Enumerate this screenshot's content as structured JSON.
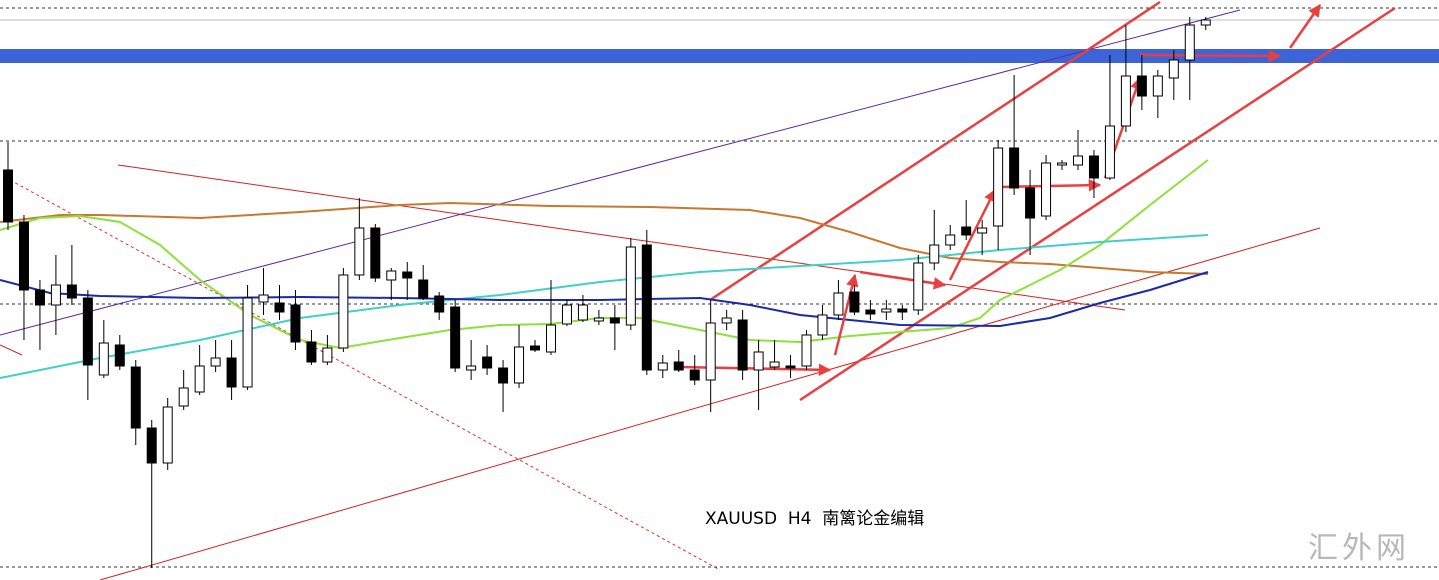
{
  "chart_data": {
    "type": "candlestick",
    "title": "XAUUSD  H4  南篱论金编辑",
    "watermark": "汇外网",
    "ylim": [
      0,
      580
    ],
    "up_color": "#ffffff",
    "down_color": "#000000",
    "edge_color": "#000000",
    "open": [
      410,
      358,
      290,
      275,
      295,
      282,
      205,
      235,
      213,
      152,
      117,
      174,
      188,
      214,
      222,
      193,
      278,
      277,
      275,
      238,
      218,
      232,
      305,
      352,
      300,
      308,
      300,
      284,
      273,
      210,
      223,
      212,
      197,
      234,
      228,
      256,
      260,
      259,
      262,
      255,
      335,
      210,
      218,
      210,
      200,
      257,
      260,
      210,
      213,
      214,
      214,
      245,
      265,
      288,
      270,
      268,
      271,
      270,
      317,
      335,
      353,
      347,
      354,
      432,
      392,
      364,
      415,
      415,
      424,
      402,
      454,
      504,
      484,
      502,
      520,
      555
    ],
    "high": [
      438,
      365,
      300,
      325,
      335,
      290,
      260,
      245,
      220,
      160,
      182,
      210,
      235,
      240,
      240,
      295,
      312,
      295,
      290,
      250,
      245,
      312,
      382,
      356,
      312,
      318,
      315,
      288,
      280,
      240,
      235,
      220,
      255,
      240,
      300,
      280,
      285,
      270,
      275,
      342,
      350,
      225,
      230,
      225,
      280,
      270,
      270,
      240,
      240,
      225,
      250,
      275,
      300,
      295,
      280,
      280,
      275,
      325,
      370,
      355,
      380,
      360,
      440,
      505,
      410,
      425,
      420,
      450,
      430,
      525,
      555,
      525,
      510,
      530,
      563,
      563
    ],
    "low": [
      350,
      240,
      230,
      245,
      275,
      180,
      202,
      210,
      135,
      12,
      110,
      170,
      185,
      208,
      180,
      190,
      265,
      260,
      230,
      215,
      215,
      228,
      300,
      298,
      280,
      280,
      280,
      260,
      208,
      200,
      205,
      168,
      192,
      228,
      225,
      254,
      258,
      255,
      230,
      250,
      205,
      202,
      208,
      195,
      168,
      250,
      200,
      170,
      210,
      202,
      210,
      240,
      260,
      265,
      260,
      260,
      260,
      265,
      310,
      330,
      340,
      325,
      330,
      385,
      325,
      360,
      410,
      410,
      382,
      400,
      448,
      470,
      462,
      480,
      480,
      550
    ],
    "close": [
      358,
      290,
      275,
      295,
      282,
      215,
      237,
      214,
      152,
      117,
      173,
      192,
      214,
      222,
      193,
      282,
      285,
      268,
      238,
      218,
      232,
      305,
      352,
      302,
      309,
      302,
      282,
      268,
      212,
      214,
      212,
      197,
      233,
      230,
      255,
      275,
      275,
      262,
      257,
      333,
      210,
      217,
      210,
      200,
      257,
      262,
      210,
      228,
      218,
      212,
      245,
      265,
      287,
      268,
      266,
      271,
      268,
      317,
      335,
      345,
      345,
      352,
      432,
      392,
      362,
      417,
      417,
      424,
      402,
      454,
      504,
      484,
      504,
      520,
      555,
      560
    ]
  }
}
